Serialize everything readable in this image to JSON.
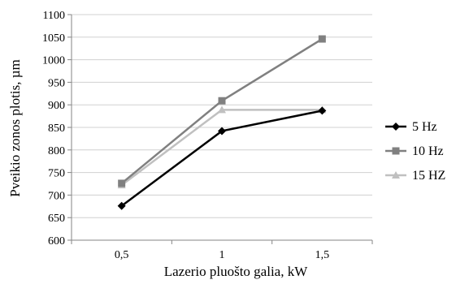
{
  "chart_data": {
    "type": "line",
    "categories": [
      "0,5",
      "1",
      "1,5"
    ],
    "series": [
      {
        "name": "5 Hz",
        "values": [
          676,
          842,
          887
        ],
        "color": "#000000",
        "marker": "diamond"
      },
      {
        "name": "10 Hz",
        "values": [
          726,
          909,
          1046
        ],
        "color": "#808080",
        "marker": "square"
      },
      {
        "name": "15 HZ",
        "values": [
          722,
          889,
          889
        ],
        "color": "#c0c0c0",
        "marker": "triangle"
      }
    ],
    "xlabel": "Lazerio pluošto galia, kW",
    "ylabel": "Pveikio zonos plotis, µm",
    "ylim": [
      600,
      1100
    ],
    "yticks": [
      600,
      650,
      700,
      750,
      800,
      850,
      900,
      950,
      1000,
      1050,
      1100
    ],
    "grid": true,
    "legend_position": "right"
  }
}
